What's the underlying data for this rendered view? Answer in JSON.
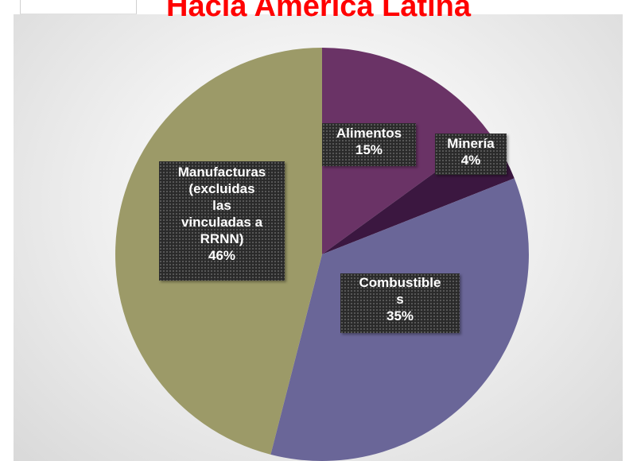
{
  "chart_data": {
    "type": "pie",
    "title": "Hacia América Latina",
    "slices": [
      {
        "category": "Alimentos",
        "value": 15,
        "label": "15%",
        "color": "#6a3366"
      },
      {
        "category": "Minería",
        "value": 4,
        "label": "4%",
        "color": "#3b1740"
      },
      {
        "category": "Combustibles",
        "value": 35,
        "label": "35%",
        "color": "#6a6698"
      },
      {
        "category": "Manufacturas (excluidas las vinculadas a RRNN)",
        "value": 46,
        "label": "46%",
        "color": "#9c9a68"
      }
    ],
    "data_label_text": {
      "alimentos": [
        "Alimentos",
        "15%"
      ],
      "mineria": [
        "Minería",
        "4%"
      ],
      "combustibles": [
        "Combustible",
        "s",
        "35%"
      ],
      "manufacturas": [
        "Manufacturas",
        "(excluidas",
        "las",
        "vinculadas a",
        "RRNN)",
        "46%"
      ]
    },
    "legend": "none",
    "background": "#e6e6e6"
  }
}
